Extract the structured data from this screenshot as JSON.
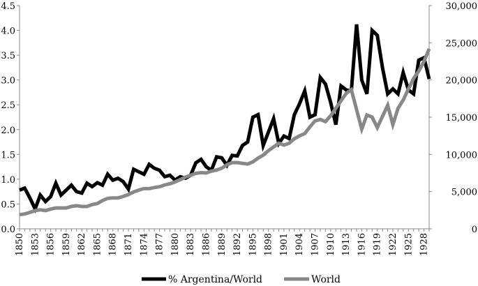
{
  "chart_data": {
    "type": "line",
    "title": "",
    "xlabel": "",
    "ylabel_left": "",
    "ylabel_right": "",
    "x": [
      1850,
      1851,
      1852,
      1853,
      1854,
      1855,
      1856,
      1857,
      1858,
      1859,
      1860,
      1861,
      1862,
      1863,
      1864,
      1865,
      1866,
      1867,
      1868,
      1869,
      1870,
      1871,
      1872,
      1873,
      1874,
      1875,
      1876,
      1877,
      1878,
      1879,
      1880,
      1881,
      1882,
      1883,
      1884,
      1885,
      1886,
      1887,
      1888,
      1889,
      1890,
      1891,
      1892,
      1893,
      1894,
      1895,
      1896,
      1897,
      1898,
      1899,
      1900,
      1901,
      1902,
      1903,
      1904,
      1905,
      1906,
      1907,
      1908,
      1909,
      1910,
      1911,
      1912,
      1913,
      1914,
      1915,
      1916,
      1917,
      1918,
      1919,
      1920,
      1921,
      1922,
      1923,
      1924,
      1925,
      1926,
      1927,
      1928,
      1929
    ],
    "x_tick_labels": [
      "1850",
      "1853",
      "1856",
      "1859",
      "1862",
      "1865",
      "1868",
      "1871",
      "1874",
      "1877",
      "1880",
      "1883",
      "1886",
      "1889",
      "1892",
      "1895",
      "1898",
      "1901",
      "1904",
      "1907",
      "1910",
      "1913",
      "1916",
      "1919",
      "1922",
      "1925",
      "1928"
    ],
    "y_left": {
      "range": [
        0,
        4.5
      ],
      "ticks": [
        "0.0",
        "0.5",
        "1.0",
        "1.5",
        "2.0",
        "2.5",
        "3.0",
        "3.5",
        "4.0",
        "4.5"
      ]
    },
    "y_right": {
      "range": [
        0,
        30000
      ],
      "ticks": [
        "0",
        "5,000",
        "10,000",
        "15,000",
        "20,000",
        "25,000",
        "30,000"
      ]
    },
    "grid": false,
    "legend_position": "bottom",
    "series": [
      {
        "name": "% Argentina/World",
        "axis": "left",
        "color": "#000000",
        "values": [
          0.78,
          0.82,
          0.62,
          0.4,
          0.68,
          0.55,
          0.65,
          0.92,
          0.68,
          0.78,
          0.88,
          0.75,
          0.72,
          0.92,
          0.85,
          0.93,
          0.88,
          1.1,
          0.98,
          1.02,
          0.95,
          0.8,
          1.2,
          1.15,
          1.1,
          1.3,
          1.22,
          1.18,
          1.05,
          1.08,
          0.98,
          1.05,
          1.02,
          1.08,
          1.33,
          1.4,
          1.25,
          1.18,
          1.45,
          1.43,
          1.28,
          1.48,
          1.47,
          1.68,
          1.75,
          2.25,
          2.3,
          1.68,
          1.95,
          2.22,
          1.72,
          1.87,
          1.82,
          2.3,
          2.52,
          2.78,
          2.25,
          2.3,
          3.05,
          2.92,
          2.55,
          2.1,
          2.88,
          2.8,
          2.78,
          4.12,
          3.0,
          2.72,
          4.0,
          3.9,
          3.25,
          2.72,
          2.82,
          2.72,
          3.15,
          2.8,
          2.72,
          3.4,
          3.45,
          3.02
        ]
      },
      {
        "name": "World",
        "axis": "right",
        "color": "#888888",
        "values": [
          1900,
          2000,
          2200,
          2450,
          2550,
          2450,
          2650,
          2800,
          2800,
          2800,
          3000,
          3100,
          3000,
          3000,
          3250,
          3400,
          3800,
          4100,
          4150,
          4150,
          4350,
          4600,
          4950,
          5200,
          5400,
          5400,
          5550,
          5650,
          5900,
          6050,
          6300,
          6600,
          6950,
          7200,
          7450,
          7550,
          7500,
          7750,
          7900,
          8150,
          8600,
          8900,
          8900,
          8800,
          8700,
          9000,
          9500,
          9900,
          10500,
          11000,
          11500,
          11250,
          11500,
          12100,
          12500,
          12800,
          13700,
          14500,
          14700,
          14400,
          15200,
          16200,
          17200,
          18200,
          18700,
          16000,
          13400,
          15300,
          15000,
          13600,
          15100,
          16600,
          14000,
          16200,
          17300,
          18800,
          20200,
          21200,
          22500,
          24200
        ]
      }
    ]
  }
}
